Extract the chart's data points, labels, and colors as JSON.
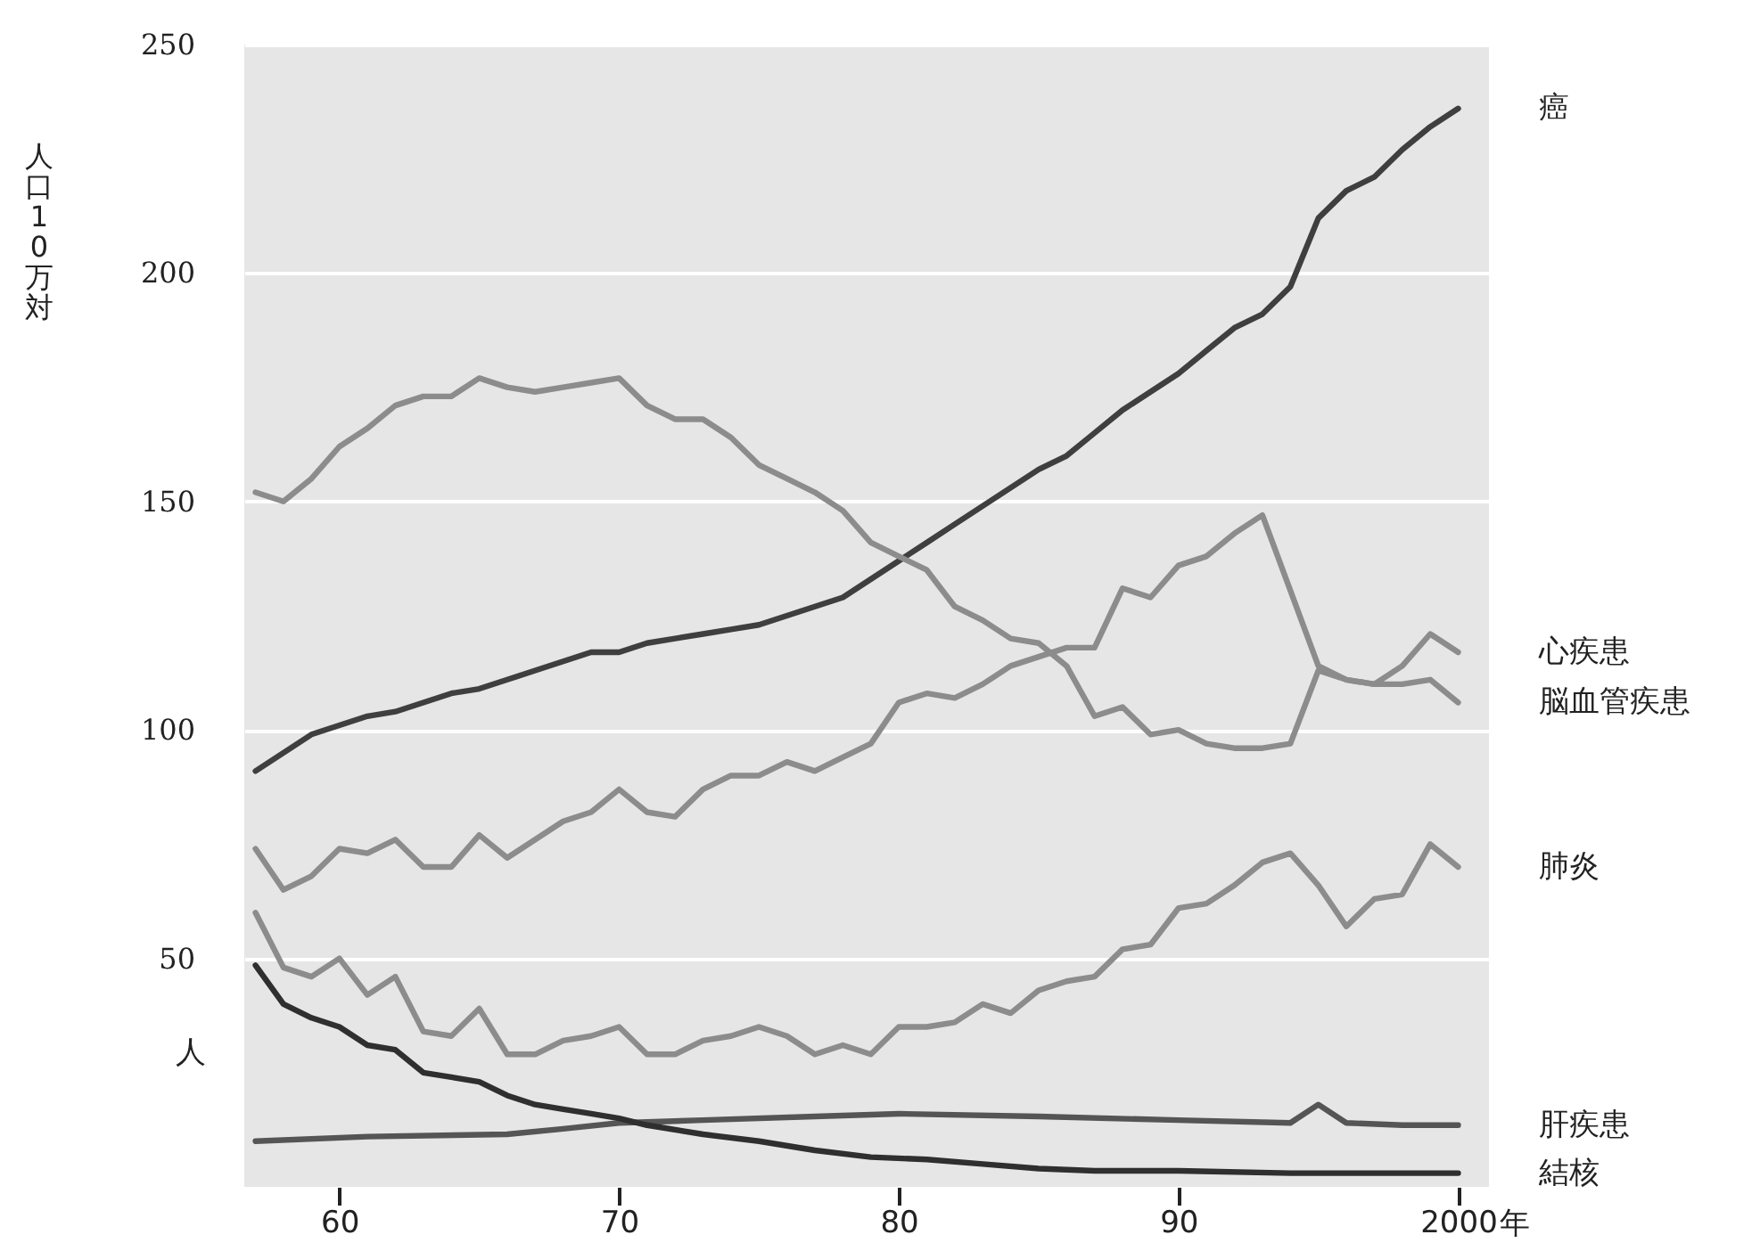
{
  "chart_data": {
    "type": "line",
    "ylabel": "人口10万対",
    "xlabel": "年",
    "annotations": [
      "人"
    ],
    "xlim": [
      1956.6,
      2001.1
    ],
    "ylim": [
      0,
      250
    ],
    "xticks": [
      {
        "value": 1960,
        "label": "60"
      },
      {
        "value": 1970,
        "label": "70"
      },
      {
        "value": 1980,
        "label": "80"
      },
      {
        "value": 1990,
        "label": "90"
      },
      {
        "value": 2000,
        "label": "2000"
      }
    ],
    "yticks": [
      50,
      100,
      150,
      200,
      250
    ],
    "grid": "y",
    "legend": false,
    "marker": "none",
    "line_style": "solid",
    "series": [
      {
        "name": "癌",
        "color": "#3f3f3f",
        "x": [
          1957,
          1958,
          1959,
          1960,
          1961,
          1962,
          1963,
          1964,
          1965,
          1966,
          1967,
          1968,
          1969,
          1970,
          1971,
          1972,
          1973,
          1974,
          1975,
          1976,
          1977,
          1978,
          1979,
          1980,
          1981,
          1982,
          1983,
          1984,
          1985,
          1986,
          1987,
          1988,
          1989,
          1990,
          1991,
          1992,
          1993,
          1994,
          1995,
          1996,
          1997,
          1998,
          1999,
          2000
        ],
        "values": [
          91,
          95,
          99,
          101,
          103,
          104,
          106,
          108,
          109,
          111,
          113,
          115,
          117,
          117,
          119,
          120,
          121,
          122,
          123,
          125,
          127,
          129,
          133,
          137,
          141,
          145,
          149,
          153,
          157,
          160,
          165,
          170,
          174,
          178,
          183,
          188,
          191,
          197,
          212,
          218,
          221,
          227,
          232,
          236
        ]
      },
      {
        "name": "脳血管疾患",
        "color": "#8c8c8c",
        "x": [
          1957,
          1958,
          1959,
          1960,
          1961,
          1962,
          1963,
          1964,
          1965,
          1966,
          1967,
          1968,
          1969,
          1970,
          1971,
          1972,
          1973,
          1974,
          1975,
          1976,
          1977,
          1978,
          1979,
          1980,
          1981,
          1982,
          1983,
          1984,
          1985,
          1986,
          1987,
          1988,
          1989,
          1990,
          1991,
          1992,
          1993,
          1994,
          1995,
          1996,
          1997,
          1998,
          1999,
          2000
        ],
        "values": [
          152,
          150,
          155,
          162,
          166,
          171,
          173,
          173,
          177,
          175,
          174,
          175,
          176,
          177,
          171,
          168,
          168,
          164,
          158,
          155,
          152,
          148,
          141,
          138,
          135,
          127,
          124,
          120,
          119,
          114,
          103,
          105,
          99,
          100,
          97,
          96,
          96,
          97,
          113,
          111,
          110,
          110,
          111,
          106
        ]
      },
      {
        "name": "心疾患",
        "color": "#8c8c8c",
        "x": [
          1957,
          1958,
          1959,
          1960,
          1961,
          1962,
          1963,
          1964,
          1965,
          1966,
          1967,
          1968,
          1969,
          1970,
          1971,
          1972,
          1973,
          1974,
          1975,
          1976,
          1977,
          1978,
          1979,
          1980,
          1981,
          1982,
          1983,
          1984,
          1985,
          1986,
          1987,
          1988,
          1989,
          1990,
          1991,
          1992,
          1993,
          1995,
          1996,
          1997,
          1998,
          1999,
          2000
        ],
        "values": [
          74,
          65,
          68,
          74,
          73,
          76,
          70,
          70,
          77,
          72,
          76,
          80,
          82,
          87,
          82,
          81,
          87,
          90,
          90,
          93,
          91,
          94,
          97,
          106,
          108,
          107,
          110,
          114,
          116,
          118,
          118,
          131,
          129,
          136,
          138,
          143,
          147,
          114,
          111,
          110,
          114,
          121,
          117
        ]
      },
      {
        "name": "肺炎",
        "color": "#8c8c8c",
        "x": [
          1957,
          1958,
          1959,
          1960,
          1961,
          1962,
          1963,
          1964,
          1965,
          1966,
          1967,
          1968,
          1969,
          1970,
          1971,
          1972,
          1973,
          1974,
          1975,
          1976,
          1977,
          1978,
          1979,
          1980,
          1981,
          1982,
          1983,
          1984,
          1985,
          1986,
          1987,
          1988,
          1989,
          1990,
          1991,
          1992,
          1993,
          1994,
          1995,
          1996,
          1997,
          1998,
          1999,
          2000
        ],
        "values": [
          60,
          48,
          46,
          50,
          42,
          46,
          34,
          33,
          39,
          29,
          29,
          32,
          33,
          35,
          29,
          29,
          32,
          33,
          35,
          33,
          29,
          31,
          29,
          35,
          35,
          36,
          40,
          38,
          43,
          45,
          46,
          52,
          53,
          61,
          62,
          66,
          71,
          73,
          66,
          57,
          63,
          64,
          75,
          70
        ]
      },
      {
        "name": "肝疾患",
        "color": "#555555",
        "x": [
          1957,
          1961,
          1966,
          1968,
          1970,
          1973,
          1977,
          1980,
          1985,
          1990,
          1994,
          1995,
          1996,
          1998,
          2000
        ],
        "values": [
          10,
          11,
          11.5,
          12.7,
          14,
          14.6,
          15.4,
          16,
          15.4,
          14.6,
          14,
          18,
          14,
          13.5,
          13.5
        ]
      },
      {
        "name": "結核",
        "color": "#2f2f2f",
        "x": [
          1957,
          1958,
          1959,
          1960,
          1961,
          1962,
          1963,
          1964,
          1965,
          1966,
          1967,
          1968,
          1969,
          1970,
          1971,
          1973,
          1975,
          1977,
          1979,
          1981,
          1983,
          1985,
          1987,
          1990,
          1994,
          2000
        ],
        "values": [
          48.5,
          40,
          37,
          35,
          31,
          30,
          25,
          24,
          23,
          20,
          18,
          17,
          16,
          15,
          13.5,
          11.5,
          10,
          8,
          6.5,
          6,
          5,
          4,
          3.5,
          3.5,
          3,
          3
        ]
      }
    ]
  }
}
